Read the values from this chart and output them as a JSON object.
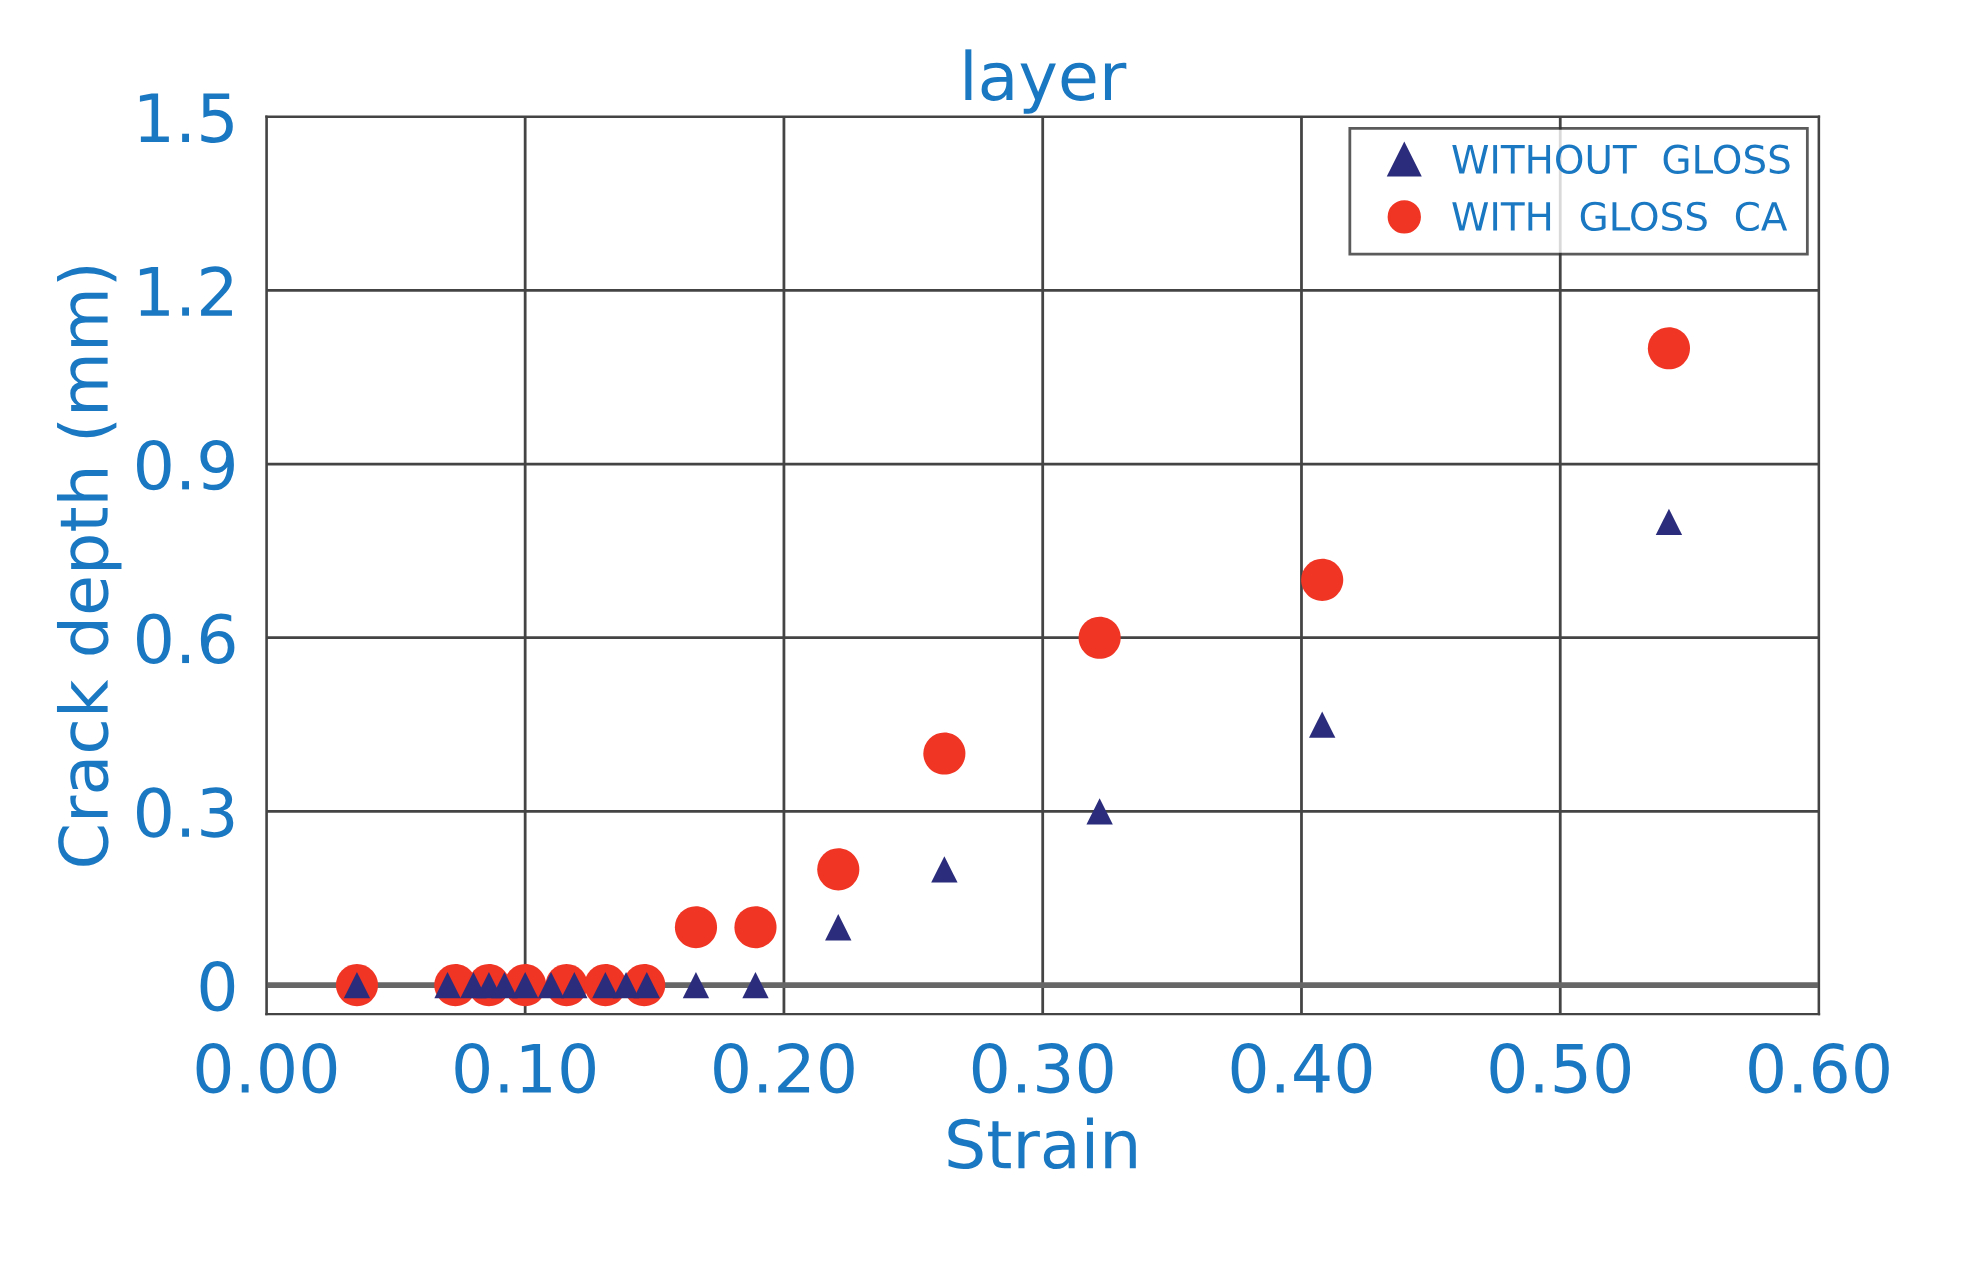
{
  "chart_data": {
    "type": "scatter",
    "title": "layer",
    "xlabel": "Strain",
    "ylabel": "Crack depth (mm)",
    "x": [
      0.035,
      0.07,
      0.08,
      0.086,
      0.092,
      0.1,
      0.11,
      0.119,
      0.131,
      0.139,
      0.147,
      0.166,
      0.189,
      0.221,
      0.262,
      0.322,
      0.408,
      0.542
    ],
    "series": [
      {
        "name": "WITHOUT  GLOSS",
        "color": "#2b2d7c",
        "marker": "triangle",
        "values": [
          0,
          0,
          0,
          0,
          0,
          0,
          0,
          0,
          0,
          0,
          0,
          0,
          0,
          0.1,
          0.2,
          0.3,
          0.45,
          0.8
        ]
      },
      {
        "name": "WITH  GLOSS  CA",
        "color": "#f03524",
        "marker": "circle",
        "x": [
          0.035,
          0.073,
          0.086,
          0.1,
          0.116,
          0.131,
          0.146,
          0.166,
          0.189,
          0.221,
          0.262,
          0.322,
          0.408,
          0.542
        ],
        "values": [
          0,
          0,
          0,
          0,
          0,
          0,
          0,
          0.1,
          0.1,
          0.2,
          0.4,
          0.6,
          0.7,
          1.1
        ]
      }
    ],
    "xlim": [
      0,
      0.6
    ],
    "xticks": [
      {
        "value": 0,
        "label": "0.00"
      },
      {
        "value": 0.1,
        "label": "0.10"
      },
      {
        "value": 0.2,
        "label": "0.20"
      },
      {
        "value": 0.3,
        "label": "0.30"
      },
      {
        "value": 0.4,
        "label": "0.40"
      },
      {
        "value": 0.5,
        "label": "0.50"
      },
      {
        "value": 0.6,
        "label": "0.60"
      }
    ],
    "ylim": [
      -0.05,
      1.5
    ],
    "yticks": [
      0,
      0.3,
      0.6,
      0.9,
      1.2,
      1.5
    ],
    "grid": true,
    "legend": "top right"
  }
}
